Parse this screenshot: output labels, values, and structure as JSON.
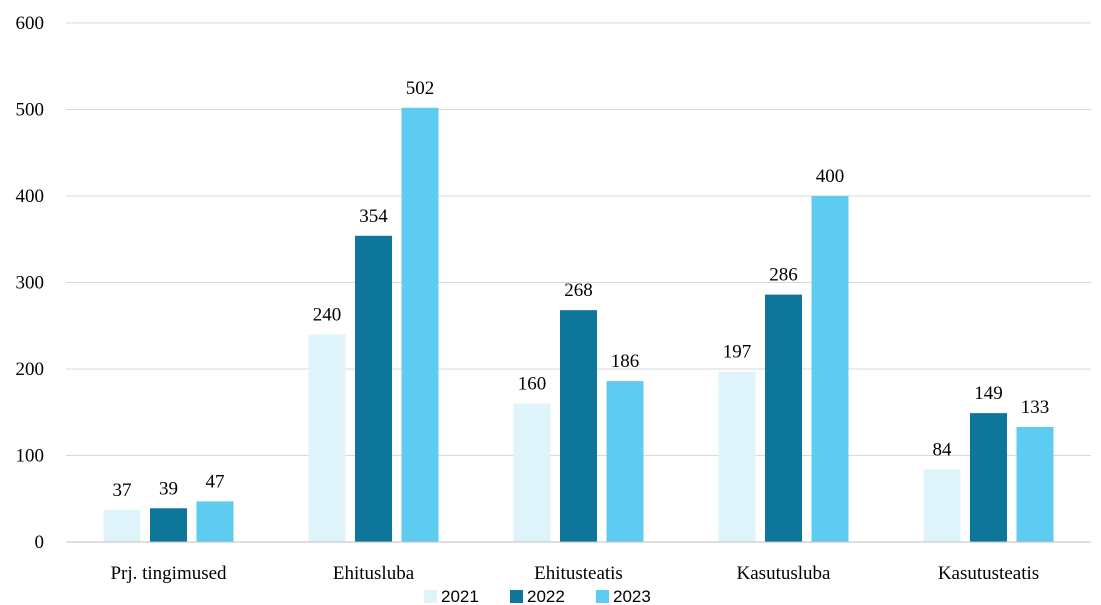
{
  "chart_data": {
    "type": "bar",
    "categories": [
      "Prj. tingimused",
      "Ehitusluba",
      "Ehitusteatis",
      "Kasutusluba",
      "Kasutusteatis"
    ],
    "series": [
      {
        "name": "2021",
        "color": "#dff3fb",
        "values": [
          37,
          240,
          160,
          197,
          84
        ]
      },
      {
        "name": "2022",
        "color": "#0e769b",
        "values": [
          39,
          354,
          268,
          286,
          149
        ]
      },
      {
        "name": "2023",
        "color": "#5ecbf0",
        "values": [
          47,
          502,
          186,
          400,
          133
        ]
      }
    ],
    "ylim": [
      0,
      600
    ],
    "yticks": [
      0,
      100,
      200,
      300,
      400,
      500,
      600
    ],
    "grid": true,
    "legend_position": "bottom",
    "data_labels": true
  }
}
